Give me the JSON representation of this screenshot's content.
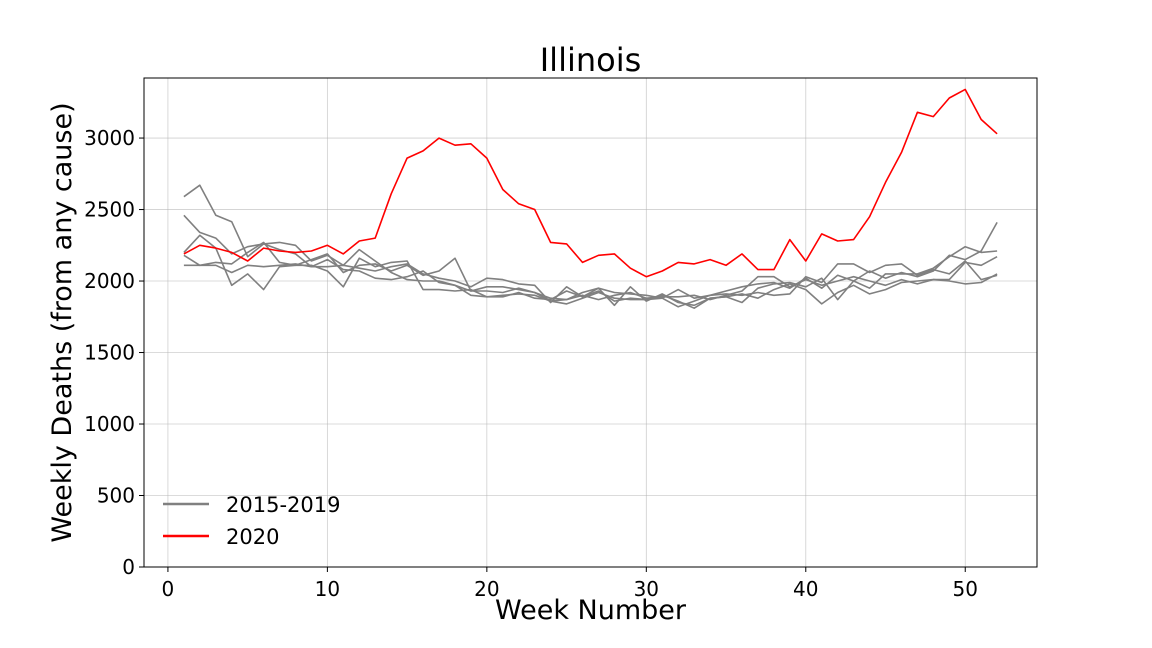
{
  "chart_data": {
    "type": "line",
    "title": "Illinois",
    "xlabel": "Week Number",
    "ylabel": "Weekly Deaths (from any cause)",
    "xlim": [
      -1.5,
      54.5
    ],
    "ylim": [
      0,
      3420
    ],
    "xticks": [
      0,
      10,
      20,
      30,
      40,
      50
    ],
    "yticks": [
      0,
      500,
      1000,
      1500,
      2000,
      2500,
      3000
    ],
    "grid": true,
    "legend": {
      "placement": "lower-left",
      "entries": [
        {
          "label": "2015-2019",
          "color": "#808080"
        },
        {
          "label": "2020",
          "color": "#ff0000"
        }
      ]
    },
    "x": [
      1,
      2,
      3,
      4,
      5,
      6,
      7,
      8,
      9,
      10,
      11,
      12,
      13,
      14,
      15,
      16,
      17,
      18,
      19,
      20,
      21,
      22,
      23,
      24,
      25,
      26,
      27,
      28,
      29,
      30,
      31,
      32,
      33,
      34,
      35,
      36,
      37,
      38,
      39,
      40,
      41,
      42,
      43,
      44,
      45,
      46,
      47,
      48,
      49,
      50,
      51,
      52
    ],
    "series": [
      {
        "group": "2015-2019",
        "color": "#808080",
        "values": [
          2590,
          2670,
          2460,
          2415,
          2170,
          2260,
          2270,
          2250,
          2140,
          2180,
          2110,
          2220,
          2140,
          2060,
          2010,
          2000,
          2000,
          1970,
          1930,
          1930,
          1920,
          1950,
          1920,
          1860,
          1870,
          1900,
          1870,
          1900,
          1920,
          1880,
          1890,
          1890,
          1900,
          1870,
          1900,
          1930,
          2030,
          2030,
          1960,
          2010,
          1970,
          2000,
          2030,
          2000,
          1970,
          2010,
          1980,
          2010,
          2010,
          2130,
          2110,
          2170
        ]
      },
      {
        "group": "2015-2019",
        "color": "#808080",
        "values": [
          2460,
          2340,
          2300,
          2190,
          2240,
          2260,
          2220,
          2190,
          2100,
          2150,
          2080,
          2070,
          2020,
          2010,
          2030,
          2070,
          1990,
          1970,
          1900,
          1890,
          1900,
          1910,
          1900,
          1860,
          1840,
          1880,
          1920,
          1880,
          1870,
          1870,
          1880,
          1940,
          1880,
          1900,
          1930,
          1960,
          1980,
          1990,
          1950,
          2020,
          1950,
          2040,
          2000,
          1950,
          2050,
          2050,
          2050,
          2090,
          2170,
          2240,
          2200,
          2210
        ]
      },
      {
        "group": "2015-2019",
        "color": "#808080",
        "values": [
          2180,
          2110,
          2130,
          2120,
          2200,
          2270,
          2130,
          2110,
          2150,
          2190,
          2060,
          2110,
          2120,
          2070,
          2110,
          2040,
          2070,
          2160,
          1930,
          1960,
          1960,
          1940,
          1920,
          1880,
          1870,
          1920,
          1950,
          1920,
          1910,
          1900,
          1880,
          1820,
          1860,
          1900,
          1910,
          1900,
          1920,
          1900,
          1910,
          2030,
          1990,
          2120,
          2120,
          2060,
          2110,
          2120,
          2040,
          2080,
          2050,
          2140,
          2010,
          2040
        ]
      },
      {
        "group": "2015-2019",
        "color": "#808080",
        "values": [
          2110,
          2110,
          2110,
          2060,
          2110,
          2100,
          2110,
          2120,
          2100,
          2100,
          2110,
          2090,
          2070,
          2100,
          2120,
          2050,
          2020,
          2000,
          1960,
          2020,
          2010,
          1980,
          1970,
          1850,
          1960,
          1890,
          1950,
          1830,
          1960,
          1860,
          1910,
          1850,
          1830,
          1880,
          1890,
          1850,
          1950,
          1980,
          1990,
          1960,
          2020,
          1870,
          2000,
          2070,
          2020,
          2060,
          2030,
          2070,
          2180,
          2150,
          2210,
          2410
        ]
      },
      {
        "group": "2015-2019",
        "color": "#808080",
        "values": [
          2200,
          2320,
          2230,
          1970,
          2050,
          1940,
          2100,
          2110,
          2110,
          2070,
          1960,
          2160,
          2100,
          2130,
          2140,
          1940,
          1940,
          1930,
          1940,
          1890,
          1890,
          1920,
          1880,
          1870,
          1930,
          1890,
          1930,
          1860,
          1880,
          1870,
          1900,
          1860,
          1810,
          1880,
          1890,
          1910,
          1880,
          1940,
          1980,
          1940,
          1840,
          1920,
          1970,
          1910,
          1940,
          1990,
          2000,
          2010,
          2000,
          1980,
          1990,
          2050
        ]
      },
      {
        "group": "2020",
        "color": "#ff0000",
        "values": [
          2190,
          2250,
          2230,
          2200,
          2140,
          2230,
          2210,
          2200,
          2210,
          2250,
          2190,
          2280,
          2300,
          2610,
          2860,
          2910,
          3000,
          2950,
          2960,
          2860,
          2640,
          2540,
          2500,
          2270,
          2260,
          2130,
          2180,
          2190,
          2090,
          2030,
          2070,
          2130,
          2120,
          2150,
          2110,
          2190,
          2080,
          2080,
          2290,
          2140,
          2330,
          2280,
          2290,
          2450,
          2690,
          2900,
          3180,
          3150,
          3280,
          3340,
          3130,
          3030
        ]
      }
    ]
  }
}
